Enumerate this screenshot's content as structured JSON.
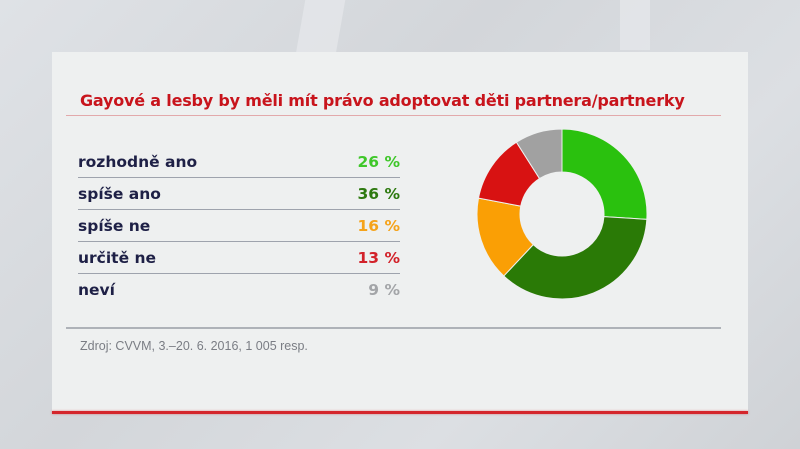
{
  "title": "Gayové a lesby by měli mít právo adoptovat děti partnera/partnerky",
  "rows": [
    {
      "label": "rozhodně ano",
      "value": "26 %",
      "color": "#3fc72a"
    },
    {
      "label": "spíše ano",
      "value": "36 %",
      "color": "#2e7a10"
    },
    {
      "label": "spíše ne",
      "value": "16 %",
      "color": "#f5a31a"
    },
    {
      "label": "určitě ne",
      "value": "13 %",
      "color": "#d2222a"
    },
    {
      "label": "neví",
      "value": "9 %",
      "color": "#a3a5a8"
    }
  ],
  "source": "Zdroj: CVVM, 3.–20. 6. 2016, 1 005 resp.",
  "chart_data": {
    "type": "pie",
    "title": "Gayové a lesby by měli mít právo adoptovat děti partnera/partnerky",
    "categories": [
      "rozhodně ano",
      "spíše ano",
      "spíše ne",
      "určitě ne",
      "neví"
    ],
    "values": [
      26,
      36,
      16,
      13,
      9
    ],
    "colors": [
      "#2ac10e",
      "#2a7a06",
      "#fa9f05",
      "#d81212",
      "#a1a1a1"
    ],
    "donut": true,
    "start_angle": "12 o'clock, clockwise",
    "legend": "left, table with values",
    "unit": "%"
  }
}
